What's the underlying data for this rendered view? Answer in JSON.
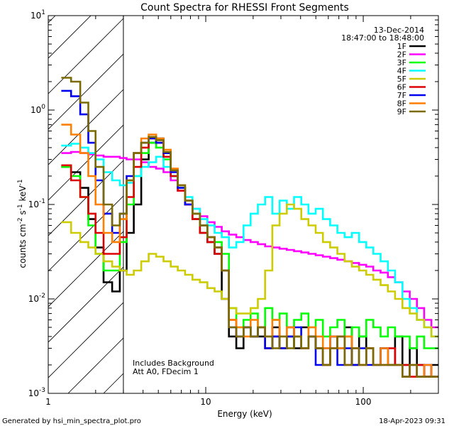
{
  "chart_data": {
    "type": "line",
    "title": "Count Spectra for RHESSI Front Segments",
    "xlabel": "Energy (keV)",
    "ylabel_parts": [
      "counts cm",
      "-2",
      " s",
      "-1",
      " keV",
      "-1"
    ],
    "xscale": "log",
    "yscale": "log",
    "xlim": [
      1,
      300
    ],
    "ylim": [
      0.001,
      10
    ],
    "x_tick_labels": [
      {
        "value": 1,
        "label": "1"
      },
      {
        "value": 10,
        "label": "10"
      },
      {
        "value": 100,
        "label": "100"
      }
    ],
    "y_tick_labels": [
      {
        "value": 10,
        "base": "10",
        "exp": "1"
      },
      {
        "value": 1,
        "base": "10",
        "exp": "0"
      },
      {
        "value": 0.1,
        "base": "10",
        "exp": "-1"
      },
      {
        "value": 0.01,
        "base": "10",
        "exp": "-2"
      },
      {
        "value": 0.001,
        "base": "10",
        "exp": "-3"
      }
    ],
    "shaded_region": {
      "from": 1,
      "to": 3,
      "style": "diagonal-hatch"
    },
    "date": "13-Dec-2014",
    "time_range": "18:47:00 to 18:48:00",
    "annotations": [
      "Includes Background",
      "Att A0, FDecim 1"
    ],
    "generated_by": "Generated by hsi_min_spectra_plot.pro",
    "generated_at": "18-Apr-2023 09:31",
    "energy_bins": [
      1.3,
      1.5,
      1.7,
      1.9,
      2.1,
      2.4,
      2.7,
      3.0,
      3.3,
      3.7,
      4.1,
      4.6,
      5.1,
      5.7,
      6.3,
      7.0,
      7.8,
      8.7,
      9.7,
      10.8,
      12,
      13.3,
      14.8,
      16.5,
      18.3,
      20.3,
      22.6,
      25.1,
      27.9,
      31,
      34.5,
      38.3,
      42.6,
      47.3,
      52.6,
      58.5,
      65,
      72.2,
      80.3,
      89.2,
      99.2,
      110,
      122,
      136,
      151,
      168,
      187,
      208,
      231,
      257,
      285
    ],
    "series": [
      {
        "name": "1F",
        "color": "#000000",
        "values": [
          0.25,
          0.22,
          0.15,
          0.07,
          0.035,
          0.015,
          0.012,
          0.02,
          0.05,
          0.1,
          0.3,
          0.45,
          0.5,
          0.35,
          0.2,
          0.15,
          0.1,
          0.07,
          0.05,
          0.04,
          0.03,
          0.01,
          0.004,
          0.003,
          0.005,
          0.004,
          0.004,
          0.003,
          0.005,
          0.003,
          0.004,
          0.003,
          0.005,
          0.004,
          0.003,
          0.002,
          0.004,
          0.003,
          0.005,
          0.002,
          0.004,
          0.003,
          0.002,
          0.003,
          0.002,
          0.004,
          0.002,
          0.003,
          0.002,
          0.0015,
          0.002
        ]
      },
      {
        "name": "2F",
        "color": "#ff00ff",
        "values": [
          0.35,
          0.36,
          0.35,
          0.34,
          0.33,
          0.32,
          0.32,
          0.31,
          0.3,
          0.3,
          0.28,
          0.25,
          0.24,
          0.22,
          0.18,
          0.14,
          0.11,
          0.09,
          0.075,
          0.065,
          0.058,
          0.052,
          0.048,
          0.045,
          0.042,
          0.04,
          0.038,
          0.036,
          0.035,
          0.034,
          0.033,
          0.032,
          0.031,
          0.03,
          0.029,
          0.028,
          0.027,
          0.026,
          0.025,
          0.024,
          0.023,
          0.022,
          0.02,
          0.019,
          0.017,
          0.015,
          0.012,
          0.01,
          0.008,
          0.006,
          0.005
        ]
      },
      {
        "name": "3F",
        "color": "#00ff00",
        "values": [
          0.25,
          0.2,
          0.12,
          0.06,
          0.03,
          0.02,
          0.02,
          0.04,
          0.1,
          0.2,
          0.35,
          0.45,
          0.4,
          0.3,
          0.2,
          0.15,
          0.11,
          0.08,
          0.06,
          0.045,
          0.04,
          0.03,
          0.008,
          0.005,
          0.006,
          0.007,
          0.005,
          0.008,
          0.006,
          0.007,
          0.005,
          0.006,
          0.007,
          0.005,
          0.006,
          0.004,
          0.005,
          0.006,
          0.004,
          0.005,
          0.004,
          0.006,
          0.005,
          0.004,
          0.005,
          0.004,
          0.004,
          0.003,
          0.004,
          0.003,
          0.003
        ]
      },
      {
        "name": "4F",
        "color": "#00ffff",
        "values": [
          0.42,
          0.44,
          0.4,
          0.35,
          0.3,
          0.22,
          0.18,
          0.16,
          0.17,
          0.2,
          0.25,
          0.28,
          0.32,
          0.25,
          0.2,
          0.15,
          0.12,
          0.09,
          0.07,
          0.06,
          0.05,
          0.045,
          0.035,
          0.04,
          0.06,
          0.08,
          0.1,
          0.12,
          0.08,
          0.11,
          0.09,
          0.12,
          0.1,
          0.08,
          0.09,
          0.07,
          0.06,
          0.05,
          0.045,
          0.05,
          0.04,
          0.035,
          0.03,
          0.025,
          0.02,
          0.015,
          0.01,
          0.008,
          0.006,
          0.005,
          0.004
        ]
      },
      {
        "name": "5F",
        "color": "#cccc00",
        "values": [
          0.065,
          0.05,
          0.04,
          0.035,
          0.03,
          0.025,
          0.022,
          0.02,
          0.018,
          0.02,
          0.025,
          0.03,
          0.028,
          0.025,
          0.022,
          0.02,
          0.018,
          0.016,
          0.015,
          0.013,
          0.012,
          0.01,
          0.008,
          0.007,
          0.007,
          0.008,
          0.01,
          0.02,
          0.06,
          0.08,
          0.1,
          0.09,
          0.07,
          0.06,
          0.05,
          0.04,
          0.035,
          0.03,
          0.025,
          0.022,
          0.02,
          0.018,
          0.016,
          0.014,
          0.012,
          0.01,
          0.008,
          0.007,
          0.006,
          0.005,
          0.004
        ]
      },
      {
        "name": "6F",
        "color": "#dd0000",
        "values": [
          0.26,
          0.18,
          0.12,
          0.08,
          0.05,
          0.03,
          0.03,
          0.045,
          0.12,
          0.25,
          0.4,
          0.5,
          0.45,
          0.32,
          0.2,
          0.14,
          0.1,
          0.07,
          0.05,
          0.04,
          0.03,
          0.02,
          0.006,
          0.004,
          0.005,
          0.004,
          0.005,
          0.003,
          0.004,
          0.003,
          0.005,
          0.004,
          0.003,
          0.004,
          0.003,
          0.002,
          0.003,
          0.004,
          0.002,
          0.003,
          0.002,
          0.003,
          0.002,
          0.002,
          0.003,
          0.002,
          0.002,
          0.0015,
          0.002,
          0.0015,
          0.0015
        ]
      },
      {
        "name": "7F",
        "color": "#0000ee",
        "values": [
          1.6,
          1.4,
          0.9,
          0.45,
          0.18,
          0.08,
          0.05,
          0.08,
          0.2,
          0.35,
          0.45,
          0.5,
          0.45,
          0.35,
          0.22,
          0.15,
          0.1,
          0.08,
          0.06,
          0.045,
          0.035,
          0.02,
          0.005,
          0.004,
          0.005,
          0.004,
          0.005,
          0.003,
          0.004,
          0.003,
          0.004,
          0.005,
          0.003,
          0.004,
          0.002,
          0.003,
          0.004,
          0.002,
          0.003,
          0.002,
          0.003,
          0.002,
          0.002,
          0.003,
          0.002,
          0.002,
          0.0015,
          0.002,
          0.0015,
          0.002,
          0.0015
        ]
      },
      {
        "name": "8F",
        "color": "#ff7f00",
        "values": [
          0.7,
          0.55,
          0.35,
          0.2,
          0.1,
          0.05,
          0.04,
          0.07,
          0.18,
          0.35,
          0.5,
          0.55,
          0.5,
          0.38,
          0.24,
          0.16,
          0.11,
          0.08,
          0.06,
          0.045,
          0.035,
          0.02,
          0.006,
          0.005,
          0.004,
          0.006,
          0.005,
          0.004,
          0.006,
          0.004,
          0.005,
          0.004,
          0.003,
          0.005,
          0.004,
          0.003,
          0.004,
          0.003,
          0.004,
          0.003,
          0.002,
          0.003,
          0.002,
          0.003,
          0.002,
          0.002,
          0.0015,
          0.002,
          0.0015,
          0.002,
          0.0015
        ]
      },
      {
        "name": "9F",
        "color": "#7a6a00",
        "values": [
          2.2,
          2.0,
          1.2,
          0.6,
          0.25,
          0.1,
          0.06,
          0.08,
          0.18,
          0.35,
          0.45,
          0.52,
          0.48,
          0.36,
          0.23,
          0.16,
          0.11,
          0.08,
          0.06,
          0.045,
          0.035,
          0.02,
          0.005,
          0.004,
          0.005,
          0.004,
          0.005,
          0.004,
          0.003,
          0.004,
          0.003,
          0.004,
          0.003,
          0.004,
          0.003,
          0.002,
          0.003,
          0.004,
          0.002,
          0.003,
          0.002,
          0.003,
          0.002,
          0.002,
          0.002,
          0.002,
          0.0015,
          0.002,
          0.0015,
          0.0015,
          0.0015
        ]
      }
    ]
  }
}
